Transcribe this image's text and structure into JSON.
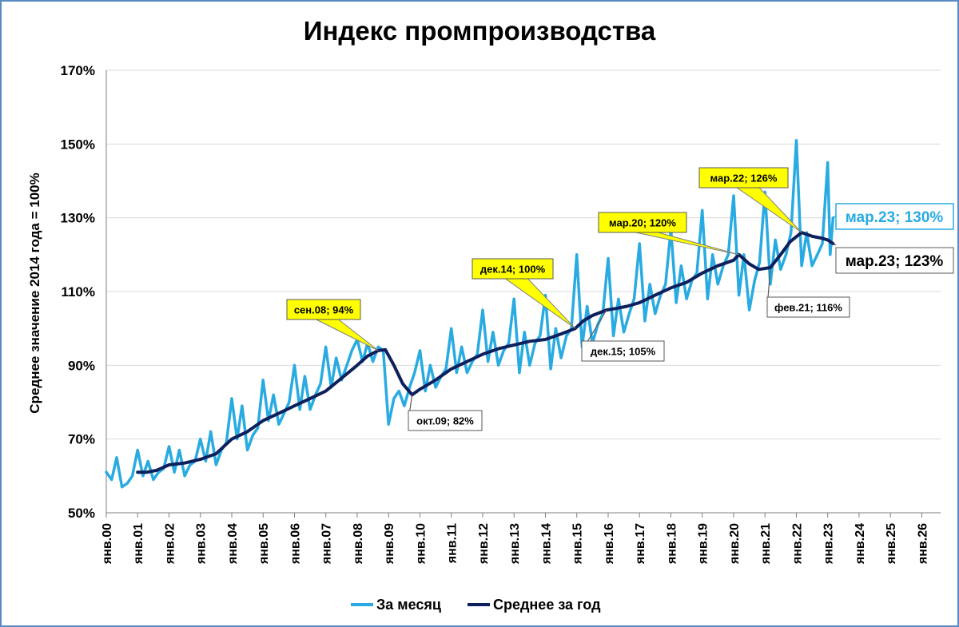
{
  "chart_data": {
    "type": "line",
    "title": "Индекс промпроизводства",
    "ylabel": "Среднее значение 2014 года = 100%",
    "xlabel": "",
    "ylim": [
      50,
      170
    ],
    "y_ticks": [
      "50%",
      "70%",
      "90%",
      "110%",
      "130%",
      "150%",
      "170%"
    ],
    "y_tick_values": [
      50,
      70,
      90,
      110,
      130,
      150,
      170
    ],
    "x_ticks": [
      "янв.00",
      "янв.01",
      "янв.02",
      "янв.03",
      "янв.04",
      "янв.05",
      "янв.06",
      "янв.07",
      "янв.08",
      "янв.09",
      "янв.10",
      "янв.11",
      "янв.12",
      "янв.13",
      "янв.14",
      "янв.15",
      "янв.16",
      "янв.17",
      "янв.18",
      "янв.19",
      "янв.20",
      "янв.21",
      "янв.22",
      "янв.23",
      "янв.24",
      "янв.25",
      "янв.26"
    ],
    "x_range": [
      2000,
      2026.6
    ],
    "grid": "horizontal",
    "legend_position": "bottom",
    "series": [
      {
        "name": "За месяц",
        "color": "#29abe2",
        "points": [
          [
            2000.0,
            61
          ],
          [
            2000.17,
            59
          ],
          [
            2000.33,
            65
          ],
          [
            2000.5,
            57
          ],
          [
            2000.67,
            58
          ],
          [
            2000.83,
            60
          ],
          [
            2001.0,
            67
          ],
          [
            2001.17,
            60
          ],
          [
            2001.33,
            64
          ],
          [
            2001.5,
            59
          ],
          [
            2001.67,
            61
          ],
          [
            2001.83,
            62
          ],
          [
            2002.0,
            68
          ],
          [
            2002.17,
            61
          ],
          [
            2002.33,
            67
          ],
          [
            2002.5,
            60
          ],
          [
            2002.67,
            63
          ],
          [
            2002.83,
            64
          ],
          [
            2003.0,
            70
          ],
          [
            2003.17,
            64
          ],
          [
            2003.33,
            72
          ],
          [
            2003.5,
            63
          ],
          [
            2003.67,
            67
          ],
          [
            2003.83,
            69
          ],
          [
            2004.0,
            81
          ],
          [
            2004.17,
            70
          ],
          [
            2004.33,
            79
          ],
          [
            2004.5,
            67
          ],
          [
            2004.67,
            71
          ],
          [
            2004.83,
            73
          ],
          [
            2005.0,
            86
          ],
          [
            2005.17,
            75
          ],
          [
            2005.33,
            82
          ],
          [
            2005.5,
            74
          ],
          [
            2005.67,
            77
          ],
          [
            2005.83,
            80
          ],
          [
            2006.0,
            90
          ],
          [
            2006.17,
            78
          ],
          [
            2006.33,
            87
          ],
          [
            2006.5,
            78
          ],
          [
            2006.67,
            82
          ],
          [
            2006.83,
            85
          ],
          [
            2007.0,
            95
          ],
          [
            2007.17,
            84
          ],
          [
            2007.33,
            92
          ],
          [
            2007.5,
            86
          ],
          [
            2007.67,
            90
          ],
          [
            2007.83,
            94
          ],
          [
            2008.0,
            97
          ],
          [
            2008.17,
            91
          ],
          [
            2008.33,
            96
          ],
          [
            2008.5,
            91
          ],
          [
            2008.67,
            95
          ],
          [
            2008.83,
            94
          ],
          [
            2009.0,
            74
          ],
          [
            2009.17,
            81
          ],
          [
            2009.33,
            83
          ],
          [
            2009.5,
            79
          ],
          [
            2009.67,
            84
          ],
          [
            2009.83,
            88
          ],
          [
            2010.0,
            94
          ],
          [
            2010.17,
            83
          ],
          [
            2010.33,
            90
          ],
          [
            2010.5,
            84
          ],
          [
            2010.67,
            87
          ],
          [
            2010.83,
            89
          ],
          [
            2011.0,
            100
          ],
          [
            2011.17,
            88
          ],
          [
            2011.33,
            95
          ],
          [
            2011.5,
            88
          ],
          [
            2011.67,
            91
          ],
          [
            2011.83,
            93
          ],
          [
            2012.0,
            105
          ],
          [
            2012.17,
            91
          ],
          [
            2012.33,
            99
          ],
          [
            2012.5,
            90
          ],
          [
            2012.67,
            94
          ],
          [
            2012.83,
            96
          ],
          [
            2013.0,
            108
          ],
          [
            2013.17,
            88
          ],
          [
            2013.33,
            99
          ],
          [
            2013.5,
            90
          ],
          [
            2013.67,
            96
          ],
          [
            2013.83,
            98
          ],
          [
            2014.0,
            109
          ],
          [
            2014.17,
            89
          ],
          [
            2014.33,
            100
          ],
          [
            2014.5,
            92
          ],
          [
            2014.67,
            98
          ],
          [
            2014.83,
            100
          ],
          [
            2015.0,
            120
          ],
          [
            2015.17,
            95
          ],
          [
            2015.33,
            106
          ],
          [
            2015.5,
            96
          ],
          [
            2015.67,
            101
          ],
          [
            2015.83,
            104
          ],
          [
            2016.0,
            119
          ],
          [
            2016.17,
            98
          ],
          [
            2016.33,
            108
          ],
          [
            2016.5,
            99
          ],
          [
            2016.67,
            104
          ],
          [
            2016.83,
            108
          ],
          [
            2017.0,
            123
          ],
          [
            2017.17,
            102
          ],
          [
            2017.33,
            112
          ],
          [
            2017.5,
            104
          ],
          [
            2017.67,
            109
          ],
          [
            2017.83,
            112
          ],
          [
            2018.0,
            127
          ],
          [
            2018.17,
            107
          ],
          [
            2018.33,
            117
          ],
          [
            2018.5,
            108
          ],
          [
            2018.67,
            113
          ],
          [
            2018.83,
            115
          ],
          [
            2019.0,
            132
          ],
          [
            2019.17,
            108
          ],
          [
            2019.33,
            120
          ],
          [
            2019.5,
            112
          ],
          [
            2019.67,
            117
          ],
          [
            2019.83,
            120
          ],
          [
            2020.0,
            136
          ],
          [
            2020.17,
            109
          ],
          [
            2020.33,
            120
          ],
          [
            2020.5,
            105
          ],
          [
            2020.67,
            113
          ],
          [
            2020.83,
            118
          ],
          [
            2021.0,
            137
          ],
          [
            2021.17,
            112
          ],
          [
            2021.33,
            124
          ],
          [
            2021.5,
            116
          ],
          [
            2021.67,
            120
          ],
          [
            2021.83,
            126
          ],
          [
            2022.0,
            151
          ],
          [
            2022.17,
            117
          ],
          [
            2022.33,
            126
          ],
          [
            2022.5,
            117
          ],
          [
            2022.67,
            120
          ],
          [
            2022.83,
            123
          ],
          [
            2023.0,
            145
          ],
          [
            2023.08,
            120
          ],
          [
            2023.17,
            130
          ]
        ]
      },
      {
        "name": "Среднее за год",
        "color": "#0d1f5c",
        "points": [
          [
            2001.0,
            61
          ],
          [
            2001.3,
            61
          ],
          [
            2001.6,
            61.5
          ],
          [
            2002.0,
            63
          ],
          [
            2002.5,
            63.5
          ],
          [
            2003.0,
            64.5
          ],
          [
            2003.5,
            66
          ],
          [
            2004.0,
            70
          ],
          [
            2004.5,
            72
          ],
          [
            2005.0,
            75
          ],
          [
            2005.5,
            77
          ],
          [
            2006.0,
            79
          ],
          [
            2006.5,
            81
          ],
          [
            2007.0,
            83
          ],
          [
            2007.5,
            86.5
          ],
          [
            2008.0,
            90
          ],
          [
            2008.33,
            92.5
          ],
          [
            2008.67,
            94
          ],
          [
            2008.9,
            94.2
          ],
          [
            2009.17,
            90
          ],
          [
            2009.45,
            85
          ],
          [
            2009.75,
            82
          ],
          [
            2010.0,
            83.5
          ],
          [
            2010.5,
            86
          ],
          [
            2011.0,
            89
          ],
          [
            2011.5,
            91
          ],
          [
            2012.0,
            93
          ],
          [
            2012.5,
            94.5
          ],
          [
            2013.0,
            95.5
          ],
          [
            2013.5,
            96.5
          ],
          [
            2014.0,
            97
          ],
          [
            2014.5,
            98.5
          ],
          [
            2014.95,
            100
          ],
          [
            2015.2,
            102
          ],
          [
            2015.5,
            103.5
          ],
          [
            2015.95,
            105
          ],
          [
            2016.3,
            105.5
          ],
          [
            2016.6,
            106
          ],
          [
            2017.0,
            107
          ],
          [
            2017.5,
            109
          ],
          [
            2018.0,
            111
          ],
          [
            2018.5,
            112.5
          ],
          [
            2019.0,
            115
          ],
          [
            2019.5,
            117
          ],
          [
            2020.0,
            118.5
          ],
          [
            2020.17,
            120
          ],
          [
            2020.5,
            117.5
          ],
          [
            2020.8,
            116
          ],
          [
            2021.17,
            116.5
          ],
          [
            2021.5,
            120
          ],
          [
            2021.8,
            123.5
          ],
          [
            2022.17,
            126
          ],
          [
            2022.5,
            125
          ],
          [
            2022.8,
            124.5
          ],
          [
            2023.0,
            124
          ],
          [
            2023.17,
            123
          ]
        ]
      }
    ],
    "annotations": [
      {
        "label": "сен.08; 94%",
        "style": "yellow"
      },
      {
        "label": "окт.09; 82%",
        "style": "white"
      },
      {
        "label": "дек.14; 100%",
        "style": "yellow"
      },
      {
        "label": "дек.15; 105%",
        "style": "white"
      },
      {
        "label": "мар.20; 120%",
        "style": "yellow"
      },
      {
        "label": "фев.21; 116%",
        "style": "white"
      },
      {
        "label": "мар.22; 126%",
        "style": "yellow"
      }
    ],
    "highlight_labels": [
      {
        "label": "мар.23; 130%",
        "color": "#29abe2"
      },
      {
        "label": "мар.23; 123%",
        "color": "#000000"
      }
    ]
  }
}
